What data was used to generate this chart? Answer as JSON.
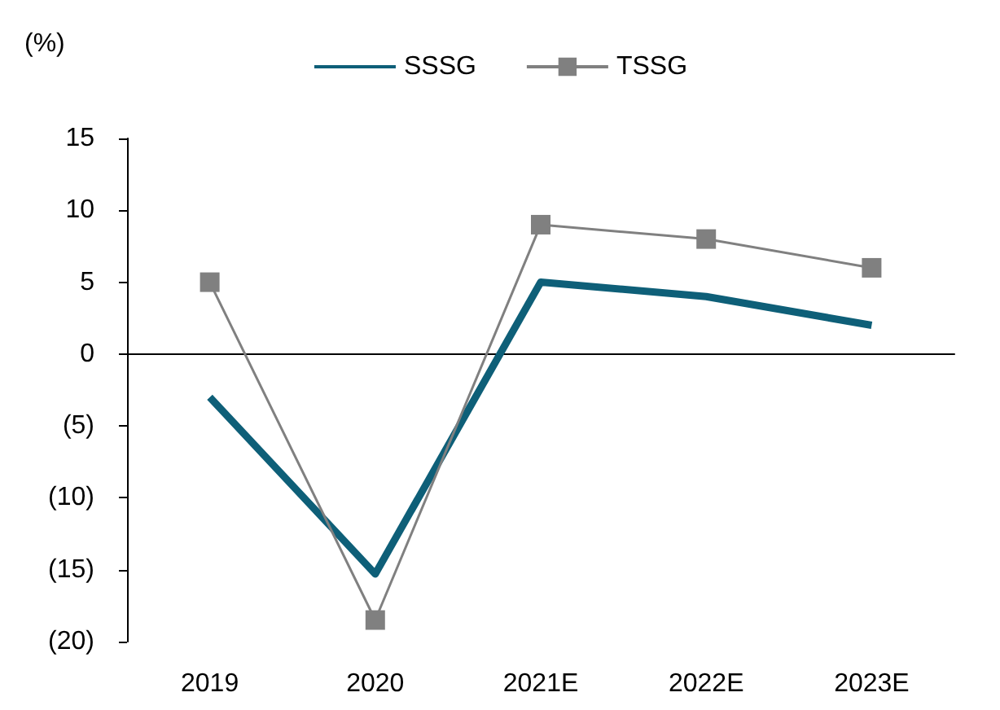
{
  "chart_data": {
    "type": "line",
    "ylabel": "(%)",
    "categories": [
      "2019",
      "2020",
      "2021E",
      "2022E",
      "2023E"
    ],
    "series": [
      {
        "name": "SSSG",
        "color": "#0e5f78",
        "values": [
          -3,
          -15.3,
          5,
          4,
          2
        ],
        "marker": "none"
      },
      {
        "name": "TSSG",
        "color": "#808080",
        "values": [
          5,
          -18.5,
          9,
          8,
          6
        ],
        "marker": "square"
      }
    ],
    "ylim": [
      -20,
      15
    ],
    "yticks": [
      {
        "value": -20,
        "label": "(20)"
      },
      {
        "value": -15,
        "label": "(15)"
      },
      {
        "value": -10,
        "label": "(10)"
      },
      {
        "value": -5,
        "label": "(5)"
      },
      0,
      5,
      10,
      15
    ],
    "legend": "top"
  }
}
